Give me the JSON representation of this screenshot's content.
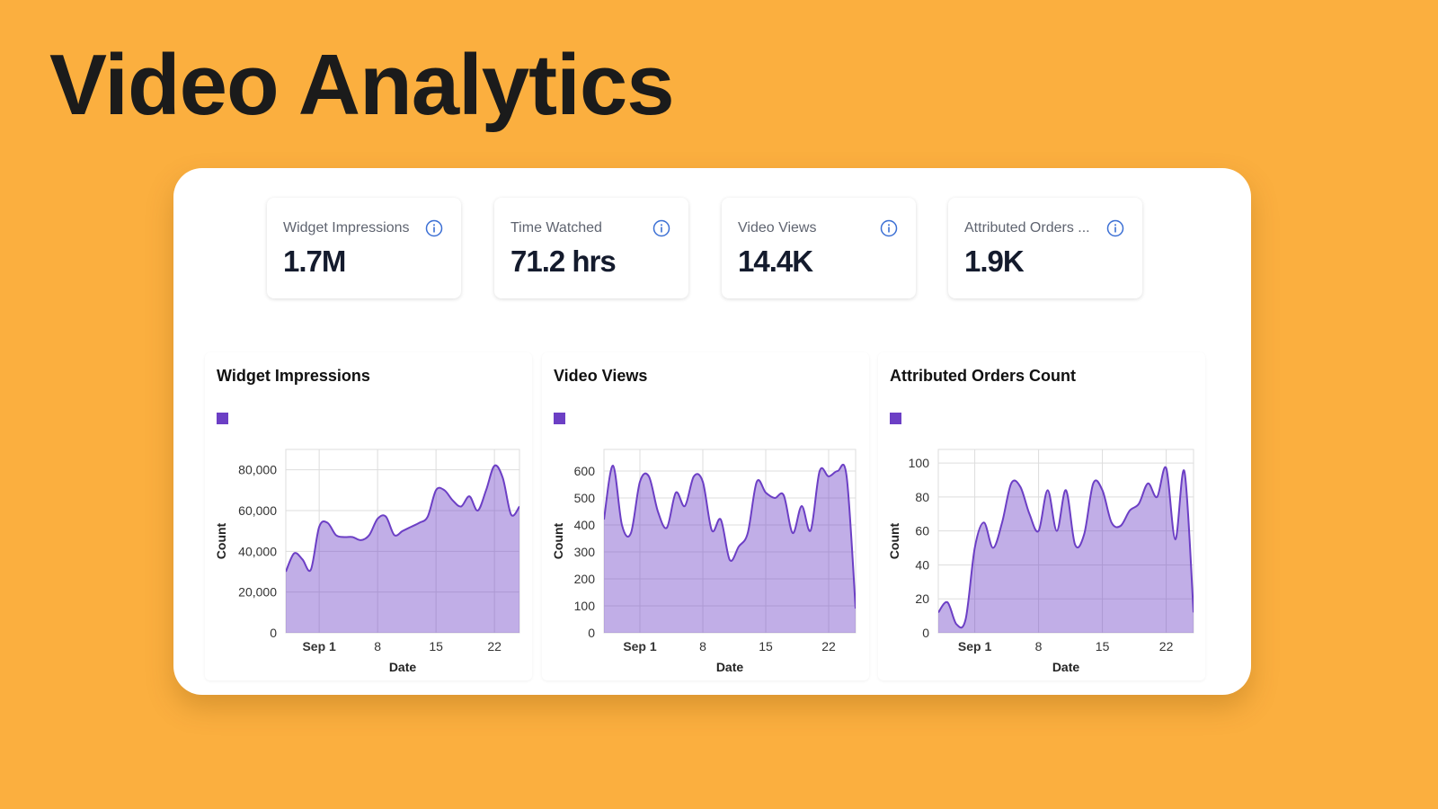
{
  "title": "Video Analytics",
  "stats": [
    {
      "label": "Widget Impressions",
      "value": "1.7M"
    },
    {
      "label": "Time Watched",
      "value": "71.2 hrs"
    },
    {
      "label": "Video Views",
      "value": "14.4K"
    },
    {
      "label": "Attributed Orders ...",
      "value": "1.9K"
    }
  ],
  "chart_data": [
    {
      "type": "area",
      "title": "Widget Impressions",
      "xlabel": "Date",
      "ylabel": "Count",
      "grid": true,
      "x": [
        -3,
        -2,
        -1,
        0,
        1,
        2,
        3,
        4,
        5,
        6,
        7,
        8,
        9,
        10,
        11,
        12,
        13,
        14,
        15,
        16,
        17,
        18,
        19,
        20,
        21,
        22,
        23,
        24,
        25
      ],
      "xlim": [
        -3,
        25
      ],
      "xticks": [
        {
          "value": 1,
          "label": "Sep 1"
        },
        8,
        15,
        22
      ],
      "ylim": [
        0,
        90000
      ],
      "yticks": [
        0,
        {
          "value": 20000,
          "label": "20,000"
        },
        {
          "value": 40000,
          "label": "40,000"
        },
        {
          "value": 60000,
          "label": "60,000"
        },
        {
          "value": 80000,
          "label": "80,000"
        }
      ],
      "series": [
        {
          "color": "#6c3fc5",
          "values": [
            30000,
            39000,
            36000,
            31000,
            52000,
            54000,
            48000,
            47000,
            47000,
            45500,
            48000,
            56000,
            57000,
            48000,
            50000,
            52000,
            54000,
            57000,
            70000,
            70000,
            65000,
            62000,
            67000,
            60000,
            70000,
            82000,
            76000,
            58000,
            62000
          ]
        }
      ]
    },
    {
      "type": "area",
      "title": "Video Views",
      "xlabel": "Date",
      "ylabel": "Count",
      "grid": true,
      "x": [
        -3,
        -2,
        -1,
        0,
        1,
        2,
        3,
        4,
        5,
        6,
        7,
        8,
        9,
        10,
        11,
        12,
        13,
        14,
        15,
        16,
        17,
        18,
        19,
        20,
        21,
        22,
        23,
        24,
        25
      ],
      "xlim": [
        -3,
        25
      ],
      "xticks": [
        {
          "value": 1,
          "label": "Sep 1"
        },
        8,
        15,
        22
      ],
      "ylim": [
        0,
        680
      ],
      "yticks": [
        0,
        100,
        200,
        300,
        400,
        500,
        600
      ],
      "series": [
        {
          "color": "#6c3fc5",
          "values": [
            420,
            620,
            400,
            370,
            560,
            580,
            450,
            390,
            520,
            470,
            580,
            560,
            380,
            420,
            270,
            320,
            370,
            560,
            520,
            500,
            510,
            370,
            470,
            380,
            600,
            580,
            600,
            580,
            90
          ]
        }
      ]
    },
    {
      "type": "area",
      "title": "Attributed Orders Count",
      "xlabel": "Date",
      "ylabel": "Count",
      "grid": true,
      "x": [
        -3,
        -2,
        -1,
        0,
        1,
        2,
        3,
        4,
        5,
        6,
        7,
        8,
        9,
        10,
        11,
        12,
        13,
        14,
        15,
        16,
        17,
        18,
        19,
        20,
        21,
        22,
        23,
        24,
        25
      ],
      "xlim": [
        -3,
        25
      ],
      "xticks": [
        {
          "value": 1,
          "label": "Sep 1"
        },
        8,
        15,
        22
      ],
      "ylim": [
        0,
        108
      ],
      "yticks": [
        0,
        20,
        40,
        60,
        80,
        100
      ],
      "series": [
        {
          "color": "#6c3fc5",
          "values": [
            12,
            18,
            5,
            8,
            50,
            65,
            50,
            65,
            88,
            86,
            70,
            60,
            84,
            60,
            84,
            52,
            58,
            88,
            84,
            65,
            63,
            72,
            76,
            88,
            80,
            97,
            55,
            95,
            12
          ]
        }
      ]
    }
  ]
}
